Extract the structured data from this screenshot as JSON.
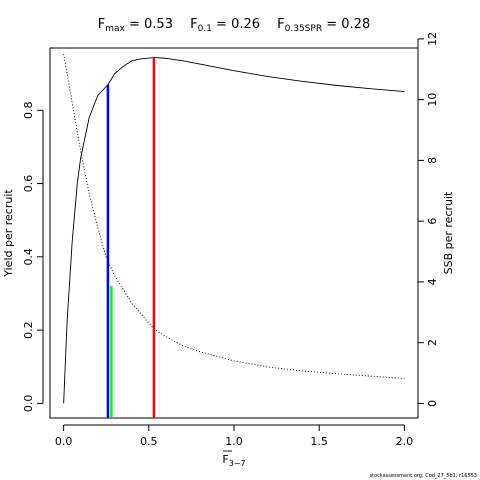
{
  "chart_data": {
    "type": "line",
    "title_parts": [
      {
        "main": "F",
        "sub": "max",
        "value": "= 0.53"
      },
      {
        "main": "F",
        "sub": "0.1",
        "value": "= 0.26"
      },
      {
        "main": "F",
        "sub": "0.35SPR",
        "value": "= 0.28"
      }
    ],
    "xlabel": {
      "main": "F",
      "sub": "3−7"
    },
    "ylabel_left": "Yield per recruit",
    "ylabel_right": "SSB per recruit",
    "xlim": [
      -0.08,
      2.08
    ],
    "ylim_left": [
      -0.04,
      0.97
    ],
    "ylim_right": [
      -0.48,
      11.7
    ],
    "x_ticks": [
      0.0,
      0.5,
      1.0,
      1.5,
      2.0
    ],
    "x_tick_labels": [
      "0.0",
      "0.5",
      "1.0",
      "1.5",
      "2.0"
    ],
    "y_left_ticks": [
      0.0,
      0.2,
      0.4,
      0.6,
      0.8
    ],
    "y_left_tick_labels": [
      "0.0",
      "0.2",
      "0.4",
      "0.6",
      "0.8"
    ],
    "y_right_ticks": [
      0,
      2,
      4,
      6,
      8,
      10,
      12
    ],
    "y_right_tick_labels": [
      "0",
      "2",
      "4",
      "6",
      "8",
      "10",
      "12"
    ],
    "series": [
      {
        "axis": "left",
        "style": "solid",
        "color": "#000000",
        "x": [
          0.0,
          0.02,
          0.05,
          0.08,
          0.1,
          0.15,
          0.2,
          0.26,
          0.3,
          0.35,
          0.4,
          0.45,
          0.53,
          0.6,
          0.7,
          0.8,
          1.0,
          1.2,
          1.4,
          1.6,
          1.8,
          2.0
        ],
        "y": [
          0.0,
          0.22,
          0.44,
          0.6,
          0.67,
          0.78,
          0.84,
          0.87,
          0.9,
          0.92,
          0.935,
          0.94,
          0.944,
          0.942,
          0.935,
          0.926,
          0.908,
          0.892,
          0.879,
          0.868,
          0.859,
          0.851
        ]
      },
      {
        "axis": "right",
        "style": "dotted",
        "color": "#000000",
        "x": [
          0.0,
          0.05,
          0.1,
          0.15,
          0.2,
          0.25,
          0.3,
          0.4,
          0.53,
          0.6,
          0.7,
          0.8,
          1.0,
          1.2,
          1.4,
          1.6,
          1.8,
          2.0
        ],
        "y": [
          11.5,
          9.9,
          8.3,
          6.9,
          5.8,
          4.8,
          4.2,
          3.3,
          2.45,
          2.2,
          1.9,
          1.7,
          1.4,
          1.2,
          1.07,
          0.98,
          0.9,
          0.82
        ]
      }
    ],
    "reference_lines": [
      {
        "x": 0.26,
        "y_top": 0.87,
        "color": "#0000ff"
      },
      {
        "x": 0.28,
        "y_top": 0.32,
        "color": "#00ff00"
      },
      {
        "x": 0.53,
        "y_top": 0.944,
        "color": "#ff0000"
      }
    ],
    "credit": "stockassessment.org, Cod_27_5b1, r16553"
  }
}
